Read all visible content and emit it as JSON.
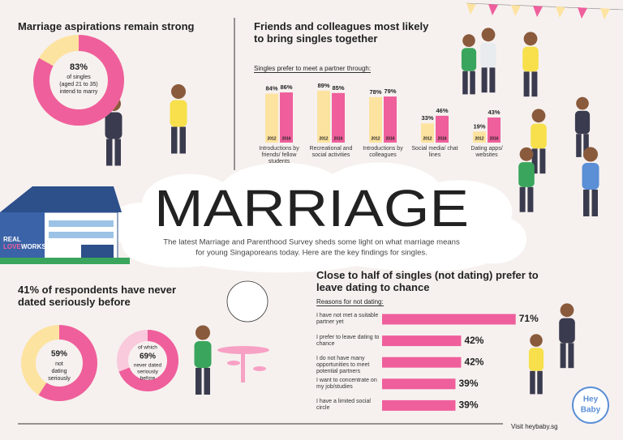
{
  "headline": "MARRIAGE",
  "intro": [
    "The latest Marriage and Parenthood Survey sheds some light on what marriage means",
    "for young Singaporeans today. Here are the key findings for singles."
  ],
  "house_sign": [
    "REAL",
    "LOVE",
    "WORKS"
  ],
  "footer": "Visit heybaby.sg",
  "logo": [
    "Hey",
    "Baby"
  ],
  "chart_data": [
    {
      "type": "donut",
      "title": "Marriage aspirations remain strong",
      "values": [
        83
      ],
      "value_labels": [
        "83%"
      ],
      "caption": [
        "of singles",
        "(aged 21 to 35)",
        "intend to marry"
      ],
      "color": "#ef5f9c",
      "track_color": "#fde3a0"
    },
    {
      "type": "grouped-bar",
      "title": "Friends and colleagues most likely to bring singles together",
      "subtitle": "Singles prefer to meet a partner through:",
      "categories": [
        "Introductions by friends/ fellow students",
        "Recreational and social activities",
        "Introductions by colleagues",
        "Social media/ chat lines",
        "Dating apps/ websites"
      ],
      "series": [
        {
          "name": "2012",
          "color": "#fde3a0",
          "values": [
            84,
            89,
            78,
            33,
            19
          ],
          "value_labels": [
            "84%",
            "89%",
            "78%",
            "33%",
            "19%"
          ]
        },
        {
          "name": "2016",
          "color": "#ef5f9c",
          "values": [
            86,
            85,
            79,
            46,
            43
          ],
          "value_labels": [
            "86%",
            "85%",
            "79%",
            "46%",
            "43%"
          ]
        }
      ]
    },
    {
      "type": "donut",
      "title": "41% of respondents have never dated seriously before",
      "values": [
        59
      ],
      "value_labels": [
        "59%"
      ],
      "caption": [
        "not",
        "dating",
        "seriously"
      ],
      "color": "#ef5f9c",
      "track_color": "#fde3a0"
    },
    {
      "type": "donut",
      "note": "of which",
      "values": [
        69
      ],
      "value_labels": [
        "69%"
      ],
      "caption": [
        "never dated",
        "seriously",
        "before"
      ],
      "color": "#ef5f9c",
      "track_color": "#f9c9dc"
    },
    {
      "type": "hbar",
      "title": "Close to half of singles (not dating) prefer to leave dating to chance",
      "subtitle": "Reasons for not dating:",
      "categories": [
        "I have not met a suitable partner yet",
        "I prefer to leave dating to chance",
        "I do not have many opportunities to meet potential partners",
        "I want to concentrate on my job/studies",
        "I have a limited social circle"
      ],
      "values": [
        71,
        42,
        42,
        39,
        39
      ],
      "value_labels": [
        "71%",
        "42%",
        "42%",
        "39%",
        "39%"
      ],
      "color": "#ef5f9c"
    }
  ]
}
